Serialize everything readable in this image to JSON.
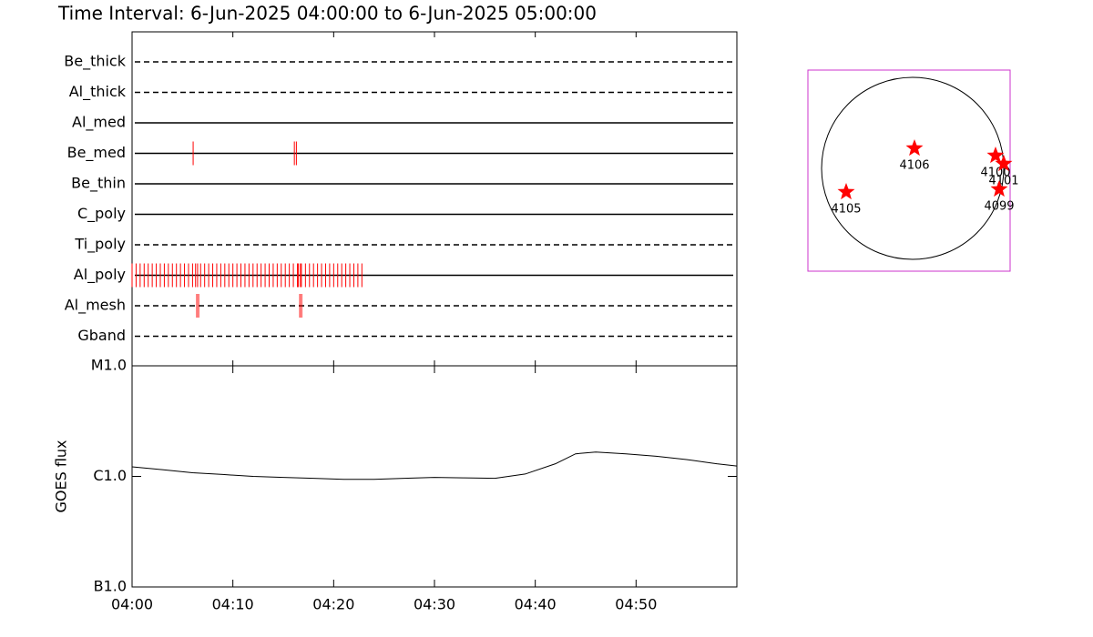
{
  "chart_data": [
    {
      "type": "timeline",
      "title": "Time Interval:  6-Jun-2025 04:00:00 to  6-Jun-2025 05:00:00",
      "xlim": [
        0,
        60
      ],
      "xticks": [
        0,
        10,
        20,
        30,
        40,
        50
      ],
      "event_color": "#ff0000",
      "rows": [
        {
          "name": "Be_thick",
          "style": "dashed",
          "events": []
        },
        {
          "name": "Al_thick",
          "style": "dashed",
          "events": []
        },
        {
          "name": "Al_med",
          "style": "solid",
          "events": []
        },
        {
          "name": "Be_med",
          "style": "solid",
          "events": [
            6.06,
            16.1,
            16.3
          ]
        },
        {
          "name": "Be_thin",
          "style": "solid",
          "events": []
        },
        {
          "name": "C_poly",
          "style": "solid",
          "events": []
        },
        {
          "name": "Ti_poly",
          "style": "dashed",
          "events": []
        },
        {
          "name": "Al_poly",
          "style": "solid",
          "events": [
            0,
            0.4,
            0.8,
            1.2,
            1.6,
            2,
            2.4,
            2.8,
            3.2,
            3.6,
            4,
            4.4,
            4.8,
            5.2,
            5.6,
            6,
            6.3,
            6.5,
            6.8,
            7.2,
            7.6,
            8,
            8.4,
            8.8,
            9.2,
            9.6,
            10,
            10.4,
            10.8,
            11.2,
            11.6,
            12,
            12.4,
            12.8,
            13.2,
            13.6,
            14,
            14.4,
            14.8,
            15.2,
            15.6,
            16,
            16.4,
            16.5,
            16.7,
            16.8,
            17.2,
            17.6,
            18,
            18.4,
            18.8,
            19.2,
            19.6,
            20,
            20.4,
            20.8,
            21.2,
            21.6,
            22,
            22.4,
            22.8
          ]
        },
        {
          "name": "Al_mesh",
          "style": "dashed",
          "events": [
            6.42,
            6.6,
            16.64,
            16.82
          ]
        },
        {
          "name": "Gband",
          "style": "dashed",
          "events": []
        }
      ]
    },
    {
      "type": "line",
      "ylabel": "GOES flux",
      "log": true,
      "color": "#000000",
      "xlim": [
        0,
        60
      ],
      "xticks": [
        {
          "value": 0,
          "label": "04:00"
        },
        {
          "value": 10,
          "label": "04:10"
        },
        {
          "value": 20,
          "label": "04:20"
        },
        {
          "value": 30,
          "label": "04:30"
        },
        {
          "value": 40,
          "label": "04:40"
        },
        {
          "value": 50,
          "label": "04:50"
        }
      ],
      "ylim": [
        1e-07,
        1e-05
      ],
      "yticks": [
        {
          "value": 1e-05,
          "label": "M1.0"
        },
        {
          "value": 1e-06,
          "label": "C1.0"
        },
        {
          "value": 1e-07,
          "label": "B1.0"
        }
      ],
      "x": [
        0,
        3,
        6,
        9,
        12,
        15,
        18,
        21,
        24,
        27,
        30,
        33,
        36,
        39,
        42,
        44,
        46,
        49,
        52,
        55,
        58,
        60
      ],
      "values": [
        1.22e-06,
        1.15e-06,
        1.08e-06,
        1.04e-06,
        1e-06,
        9.8e-07,
        9.6e-07,
        9.4e-07,
        9.4e-07,
        9.6e-07,
        9.8e-07,
        9.7e-07,
        9.6e-07,
        1.05e-06,
        1.3e-06,
        1.6e-06,
        1.66e-06,
        1.6e-06,
        1.52e-06,
        1.42e-06,
        1.3e-06,
        1.24e-06
      ]
    },
    {
      "type": "scatter",
      "color": "#ff0000",
      "frame_color": "#cc33cc",
      "xlim": [
        -1.15,
        1.07
      ],
      "ylim": [
        -1.13,
        1.08
      ],
      "labels": [
        "4106",
        "4100",
        "4101",
        "4099",
        "4105"
      ],
      "x": [
        0.02,
        0.91,
        1.0,
        0.95,
        -0.73
      ],
      "values": [
        0.22,
        0.14,
        0.05,
        -0.23,
        -0.26
      ]
    }
  ]
}
